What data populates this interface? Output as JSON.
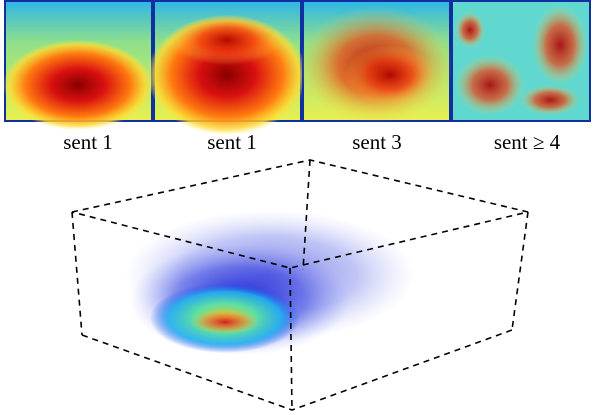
{
  "panels": [
    {
      "label": "sent 1"
    },
    {
      "label": "sent 1"
    },
    {
      "label": "sent 3"
    },
    {
      "label": "sent ≥ 4"
    }
  ]
}
